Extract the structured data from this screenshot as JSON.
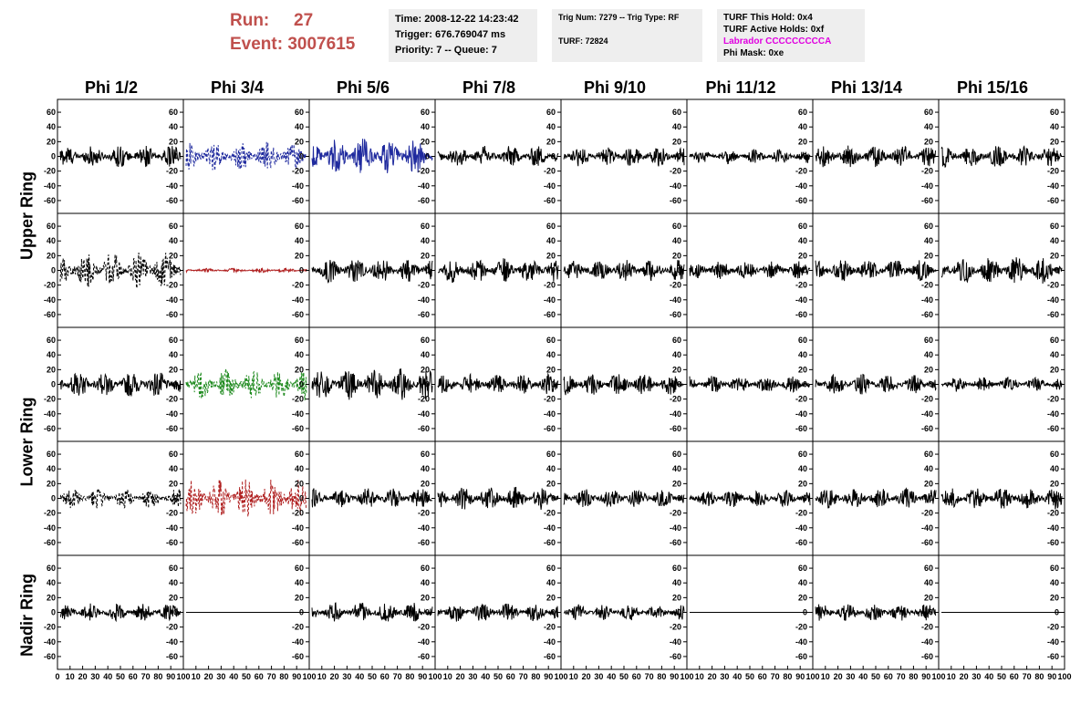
{
  "header": {
    "run_label": "Run:",
    "run_value": "27",
    "event_label": "Event:",
    "event_value": "3007615",
    "time": "Time: 2008-12-22 14:23:42",
    "trigger": "Trigger: 676.769047 ms",
    "priority": "Priority: 7 -- Queue: 7",
    "trig_num": "Trig Num: 7279 -- Trig Type: RF",
    "turf": "TURF: 72824",
    "turf_this_hold": "TURF This Hold: 0x4",
    "turf_active_holds": "TURF Active Holds: 0xf",
    "labrador": "Labrador CCCCCCCCCA",
    "phi_mask": "Phi Mask: 0xe"
  },
  "columns": [
    "Phi 1/2",
    "Phi 3/4",
    "Phi 5/6",
    "Phi 7/8",
    "Phi 9/10",
    "Phi 11/12",
    "Phi 13/14",
    "Phi 15/16"
  ],
  "ring_labels": [
    {
      "label": "Upper Ring"
    },
    {
      "label": "Lower Ring"
    },
    {
      "label": "Nadir Ring"
    }
  ],
  "chart_data": {
    "type": "line",
    "x_tick_labels": [
      "0",
      "10",
      "20",
      "30",
      "40",
      "50",
      "60",
      "70",
      "80",
      "90",
      "100"
    ],
    "y_tick_labels": [
      "60",
      "40",
      "20",
      "0",
      "-20",
      "-40",
      "-60"
    ],
    "xlim": [
      0,
      100
    ],
    "ylim": [
      -70,
      70
    ],
    "rows": 5,
    "cols": 8,
    "panels": [
      {
        "row": 0,
        "col": 0,
        "color": "#000000",
        "dashed": false,
        "amp": 15
      },
      {
        "row": 0,
        "col": 1,
        "color": "#1f2a9e",
        "dashed": true,
        "amp": 20
      },
      {
        "row": 0,
        "col": 2,
        "color": "#1f2a9e",
        "dashed": false,
        "amp": 25
      },
      {
        "row": 0,
        "col": 3,
        "color": "#000000",
        "dashed": false,
        "amp": 15
      },
      {
        "row": 0,
        "col": 4,
        "color": "#000000",
        "dashed": false,
        "amp": 14
      },
      {
        "row": 0,
        "col": 5,
        "color": "#000000",
        "dashed": false,
        "amp": 10
      },
      {
        "row": 0,
        "col": 6,
        "color": "#000000",
        "dashed": false,
        "amp": 15
      },
      {
        "row": 0,
        "col": 7,
        "color": "#000000",
        "dashed": false,
        "amp": 15
      },
      {
        "row": 1,
        "col": 0,
        "color": "#000000",
        "dashed": true,
        "amp": 25
      },
      {
        "row": 1,
        "col": 1,
        "color": "#b02020",
        "dashed": false,
        "amp": 3
      },
      {
        "row": 1,
        "col": 2,
        "color": "#000000",
        "dashed": false,
        "amp": 17
      },
      {
        "row": 1,
        "col": 3,
        "color": "#000000",
        "dashed": false,
        "amp": 17
      },
      {
        "row": 1,
        "col": 4,
        "color": "#000000",
        "dashed": false,
        "amp": 15
      },
      {
        "row": 1,
        "col": 5,
        "color": "#000000",
        "dashed": false,
        "amp": 13
      },
      {
        "row": 1,
        "col": 6,
        "color": "#000000",
        "dashed": false,
        "amp": 15
      },
      {
        "row": 1,
        "col": 7,
        "color": "#000000",
        "dashed": false,
        "amp": 18
      },
      {
        "row": 2,
        "col": 0,
        "color": "#000000",
        "dashed": false,
        "amp": 18
      },
      {
        "row": 2,
        "col": 1,
        "color": "#1e8a1e",
        "dashed": true,
        "amp": 22
      },
      {
        "row": 2,
        "col": 2,
        "color": "#000000",
        "dashed": false,
        "amp": 22
      },
      {
        "row": 2,
        "col": 3,
        "color": "#000000",
        "dashed": false,
        "amp": 14
      },
      {
        "row": 2,
        "col": 4,
        "color": "#000000",
        "dashed": false,
        "amp": 15
      },
      {
        "row": 2,
        "col": 5,
        "color": "#000000",
        "dashed": false,
        "amp": 12
      },
      {
        "row": 2,
        "col": 6,
        "color": "#000000",
        "dashed": false,
        "amp": 14
      },
      {
        "row": 2,
        "col": 7,
        "color": "#000000",
        "dashed": false,
        "amp": 10
      },
      {
        "row": 3,
        "col": 0,
        "color": "#000000",
        "dashed": true,
        "amp": 14
      },
      {
        "row": 3,
        "col": 1,
        "color": "#b02020",
        "dashed": true,
        "amp": 28
      },
      {
        "row": 3,
        "col": 2,
        "color": "#000000",
        "dashed": false,
        "amp": 14
      },
      {
        "row": 3,
        "col": 3,
        "color": "#000000",
        "dashed": false,
        "amp": 16
      },
      {
        "row": 3,
        "col": 4,
        "color": "#000000",
        "dashed": false,
        "amp": 13
      },
      {
        "row": 3,
        "col": 5,
        "color": "#000000",
        "dashed": false,
        "amp": 12
      },
      {
        "row": 3,
        "col": 6,
        "color": "#000000",
        "dashed": false,
        "amp": 14
      },
      {
        "row": 3,
        "col": 7,
        "color": "#000000",
        "dashed": false,
        "amp": 15
      },
      {
        "row": 4,
        "col": 0,
        "color": "#000000",
        "dashed": false,
        "amp": 12
      },
      {
        "row": 4,
        "col": 1,
        "color": "#000000",
        "dashed": false,
        "amp": 0
      },
      {
        "row": 4,
        "col": 2,
        "color": "#000000",
        "dashed": false,
        "amp": 14
      },
      {
        "row": 4,
        "col": 3,
        "color": "#000000",
        "dashed": false,
        "amp": 13
      },
      {
        "row": 4,
        "col": 4,
        "color": "#000000",
        "dashed": false,
        "amp": 11
      },
      {
        "row": 4,
        "col": 5,
        "color": "#000000",
        "dashed": false,
        "amp": 0
      },
      {
        "row": 4,
        "col": 6,
        "color": "#000000",
        "dashed": false,
        "amp": 12
      },
      {
        "row": 4,
        "col": 7,
        "color": "#000000",
        "dashed": false,
        "amp": 0
      }
    ]
  }
}
